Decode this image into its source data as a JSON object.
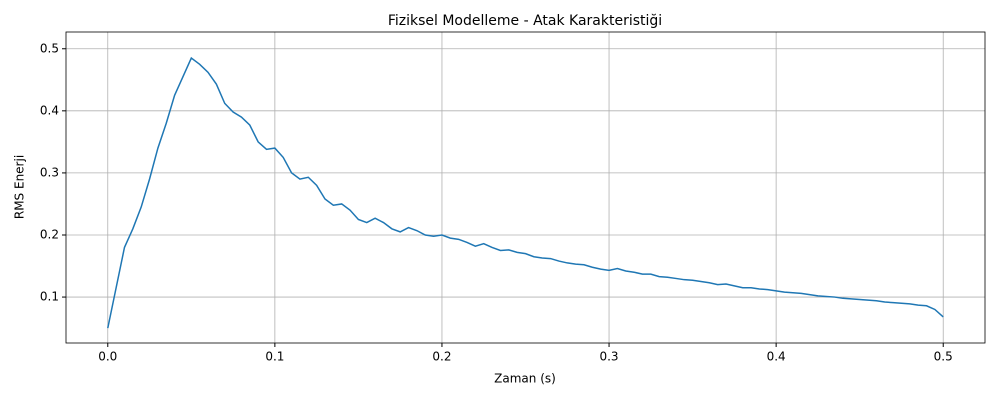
{
  "chart_data": {
    "type": "line",
    "title": "Fiziksel Modelleme - Atak Karakteristiği",
    "x_label": "Zaman (s)",
    "y_label": "RMS Enerji",
    "x": [
      0,
      0.005,
      0.01,
      0.015,
      0.02,
      0.025,
      0.03,
      0.035,
      0.04,
      0.045,
      0.05,
      0.055,
      0.06,
      0.065,
      0.07,
      0.075,
      0.08,
      0.085,
      0.09,
      0.095,
      0.1,
      0.105,
      0.11,
      0.115,
      0.12,
      0.125,
      0.13,
      0.135,
      0.14,
      0.145,
      0.15,
      0.155,
      0.16,
      0.165,
      0.17,
      0.175,
      0.18,
      0.185,
      0.19,
      0.195,
      0.2,
      0.205,
      0.21,
      0.215,
      0.22,
      0.225,
      0.23,
      0.235,
      0.24,
      0.245,
      0.25,
      0.255,
      0.26,
      0.265,
      0.27,
      0.275,
      0.28,
      0.285,
      0.29,
      0.295,
      0.3,
      0.305,
      0.31,
      0.315,
      0.32,
      0.325,
      0.33,
      0.335,
      0.34,
      0.345,
      0.35,
      0.355,
      0.36,
      0.365,
      0.37,
      0.375,
      0.38,
      0.385,
      0.39,
      0.395,
      0.4,
      0.405,
      0.41,
      0.415,
      0.42,
      0.425,
      0.43,
      0.435,
      0.44,
      0.445,
      0.45,
      0.455,
      0.46,
      0.465,
      0.47,
      0.475,
      0.48,
      0.485,
      0.49,
      0.495,
      0.5
    ],
    "series": [
      {
        "name": "RMS Enerji",
        "color": "#1f77b4",
        "values": [
          0.05,
          0.115,
          0.18,
          0.21,
          0.245,
          0.29,
          0.34,
          0.38,
          0.425,
          0.455,
          0.485,
          0.475,
          0.462,
          0.443,
          0.412,
          0.398,
          0.39,
          0.377,
          0.35,
          0.338,
          0.34,
          0.325,
          0.3,
          0.29,
          0.293,
          0.28,
          0.258,
          0.248,
          0.25,
          0.24,
          0.225,
          0.22,
          0.227,
          0.22,
          0.21,
          0.205,
          0.212,
          0.207,
          0.2,
          0.198,
          0.2,
          0.195,
          0.193,
          0.188,
          0.182,
          0.186,
          0.18,
          0.175,
          0.176,
          0.172,
          0.17,
          0.165,
          0.163,
          0.162,
          0.158,
          0.155,
          0.153,
          0.152,
          0.148,
          0.145,
          0.143,
          0.146,
          0.142,
          0.14,
          0.137,
          0.137,
          0.133,
          0.132,
          0.13,
          0.128,
          0.127,
          0.125,
          0.123,
          0.12,
          0.121,
          0.118,
          0.115,
          0.115,
          0.113,
          0.112,
          0.11,
          0.108,
          0.107,
          0.106,
          0.104,
          0.102,
          0.101,
          0.1,
          0.098,
          0.097,
          0.096,
          0.095,
          0.094,
          0.092,
          0.091,
          0.09,
          0.089,
          0.087,
          0.086,
          0.08,
          0.068
        ]
      }
    ],
    "xlim": [
      -0.025,
      0.525
    ],
    "ylim": [
      0.026,
      0.527
    ],
    "xticks": [
      {
        "value": 0,
        "label": "0.0"
      },
      0.1,
      0.2,
      0.3,
      0.4,
      0.5
    ],
    "yticks": [
      0.1,
      0.2,
      0.3,
      0.4,
      0.5
    ],
    "grid": true
  }
}
